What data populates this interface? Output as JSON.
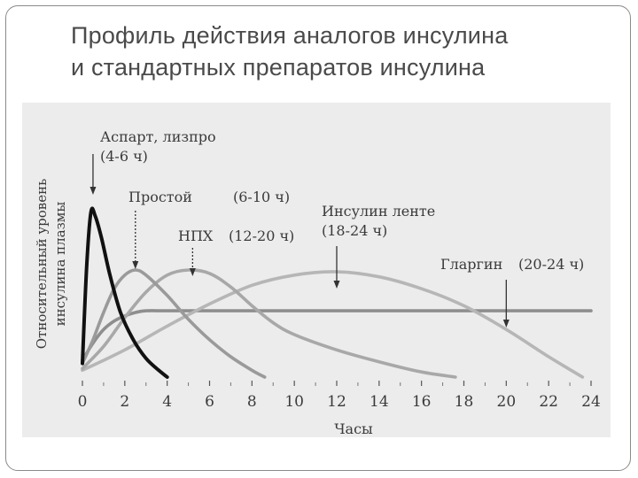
{
  "slide": {
    "title_line1": "Профиль действия аналогов инсулина",
    "title_line2": "и стандартных препаратов инсулина"
  },
  "chart_data": {
    "type": "line",
    "xlabel": "Часы",
    "ylabel_line1": "Относительный уровень",
    "ylabel_line2": "инсулина плазмы",
    "x_ticks": [
      "0",
      "2",
      "4",
      "6",
      "8",
      "10",
      "12",
      "14",
      "16",
      "18",
      "20",
      "22",
      "24"
    ],
    "xlim": [
      0,
      24
    ],
    "ylim": [
      0,
      1
    ],
    "grid": false,
    "series": [
      {
        "name": "Аспарт, лизпро",
        "duration": "(4-6 ч)",
        "color": "#111111",
        "x": [
          0,
          0.2,
          0.4,
          0.6,
          0.9,
          1.3,
          1.8,
          2.4,
          3.0,
          3.6,
          4.0
        ],
        "y": [
          0.08,
          0.65,
          0.97,
          0.95,
          0.82,
          0.6,
          0.38,
          0.22,
          0.11,
          0.04,
          0.0
        ]
      },
      {
        "name": "Простой",
        "duration": "(6-10 ч)",
        "color": "#9a9a9a",
        "x": [
          0,
          0.5,
          1,
          1.5,
          2,
          2.5,
          3,
          4,
          5,
          6,
          7,
          8,
          8.6
        ],
        "y": [
          0.08,
          0.22,
          0.38,
          0.52,
          0.6,
          0.63,
          0.6,
          0.48,
          0.34,
          0.22,
          0.12,
          0.04,
          0.0
        ]
      },
      {
        "name": "НПХ",
        "duration": "(12-20 ч)",
        "color": "#a8a8a8",
        "x": [
          0,
          1,
          2,
          3,
          4,
          5,
          6,
          7,
          8,
          9,
          10,
          12,
          14,
          16,
          17.6
        ],
        "y": [
          0.05,
          0.18,
          0.35,
          0.5,
          0.6,
          0.63,
          0.61,
          0.53,
          0.42,
          0.32,
          0.25,
          0.16,
          0.09,
          0.03,
          0.0
        ]
      },
      {
        "name": "Инсулин ленте",
        "duration": "(18-24 ч)",
        "color": "#b6b6b6",
        "x": [
          0,
          2,
          4,
          6,
          8,
          10,
          12,
          14,
          16,
          18,
          20,
          22,
          23.6
        ],
        "y": [
          0.04,
          0.16,
          0.3,
          0.43,
          0.54,
          0.6,
          0.62,
          0.59,
          0.52,
          0.42,
          0.28,
          0.12,
          0.0
        ]
      },
      {
        "name": "Гларгин",
        "duration": "(20-24 ч)",
        "color": "#8e8e8e",
        "x": [
          0,
          0.5,
          1,
          1.5,
          2,
          2.5,
          3,
          4,
          6,
          10,
          14,
          18,
          20,
          22,
          24
        ],
        "y": [
          0.1,
          0.2,
          0.28,
          0.33,
          0.36,
          0.38,
          0.39,
          0.39,
          0.39,
          0.39,
          0.39,
          0.39,
          0.39,
          0.39,
          0.39
        ]
      }
    ]
  }
}
